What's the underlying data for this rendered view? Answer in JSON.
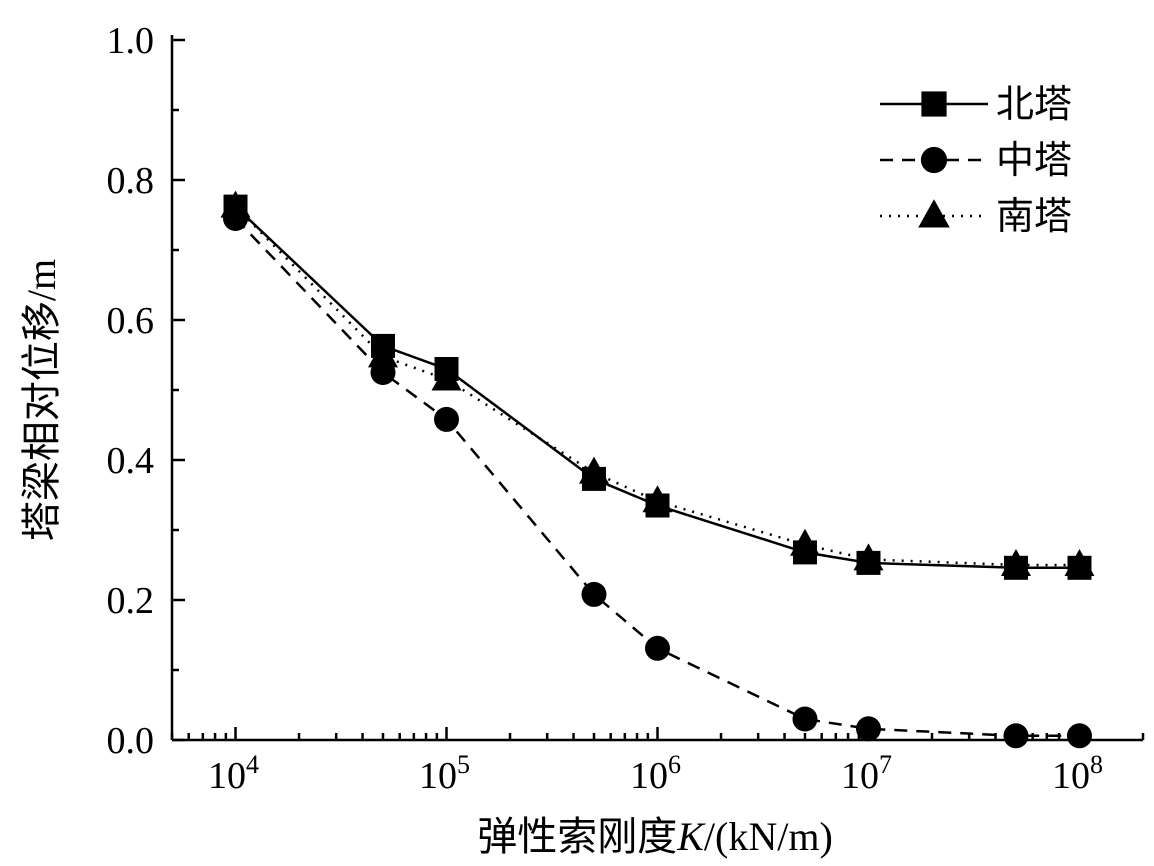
{
  "chart_data": {
    "type": "line",
    "xscale": "log",
    "x": [
      10000,
      50000,
      100000,
      500000,
      1000000,
      5000000,
      10000000,
      50000000,
      100000000
    ],
    "xlim": [
      5000,
      200000000
    ],
    "ylim": [
      0,
      1.0
    ],
    "xticks": [
      {
        "value": 10000,
        "base": "10",
        "exp": "4"
      },
      {
        "value": 100000,
        "base": "10",
        "exp": "5"
      },
      {
        "value": 1000000,
        "base": "10",
        "exp": "6"
      },
      {
        "value": 10000000,
        "base": "10",
        "exp": "7"
      },
      {
        "value": 100000000,
        "base": "10",
        "exp": "8"
      }
    ],
    "yticks": [
      {
        "value": 0.0,
        "label": "0.0"
      },
      {
        "value": 0.2,
        "label": "0.2"
      },
      {
        "value": 0.4,
        "label": "0.4"
      },
      {
        "value": 0.6,
        "label": "0.6"
      },
      {
        "value": 0.8,
        "label": "0.8"
      },
      {
        "value": 1.0,
        "label": "1.0"
      }
    ],
    "xlabel": {
      "text": "弹性索刚度",
      "italic": "K",
      "unit": "/(kN/m)"
    },
    "ylabel": {
      "text": "塔梁相对位移",
      "unit": "/m"
    },
    "grid": false,
    "legend_position": "top-right",
    "series": [
      {
        "name": "北塔",
        "marker": "square",
        "line": "solid",
        "color": "#000000",
        "values": [
          0.762,
          0.563,
          0.53,
          0.373,
          0.335,
          0.268,
          0.253,
          0.246,
          0.246
        ]
      },
      {
        "name": "中塔",
        "marker": "circle",
        "line": "dashed",
        "color": "#000000",
        "values": [
          0.745,
          0.525,
          0.458,
          0.208,
          0.131,
          0.03,
          0.016,
          0.006,
          0.006
        ]
      },
      {
        "name": "南塔",
        "marker": "triangle",
        "line": "dotted",
        "color": "#000000",
        "values": [
          0.762,
          0.548,
          0.515,
          0.382,
          0.341,
          0.279,
          0.258,
          0.25,
          0.25
        ]
      }
    ]
  }
}
